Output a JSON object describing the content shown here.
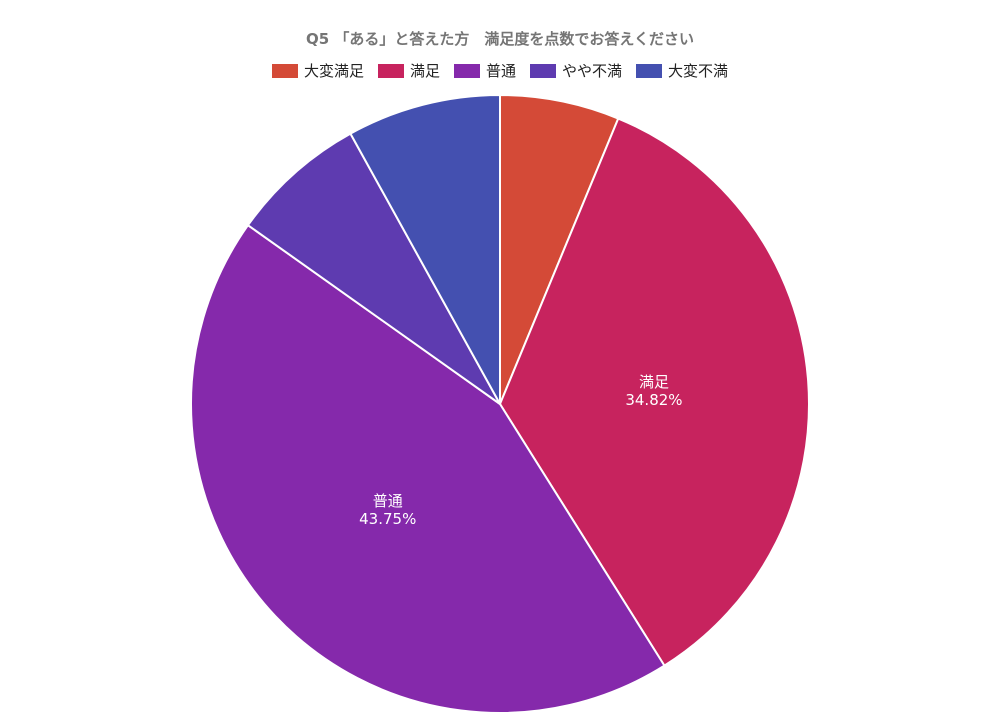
{
  "chart_data": {
    "type": "pie",
    "title": "Q5 「ある」と答えた方　満足度を点数でお答えください",
    "legend_position": "top",
    "slices": [
      {
        "name": "大変満足",
        "value": 6.25,
        "color": "#d44a37",
        "label": ""
      },
      {
        "name": "満足",
        "value": 34.82,
        "color": "#c7235e",
        "label": "34.82%"
      },
      {
        "name": "普通",
        "value": 43.75,
        "color": "#8529ab",
        "label": "43.75%"
      },
      {
        "name": "やや不満",
        "value": 7.14,
        "color": "#5e3bb0",
        "label": ""
      },
      {
        "name": "大変不満",
        "value": 8.04,
        "color": "#4450b0",
        "label": ""
      }
    ]
  }
}
